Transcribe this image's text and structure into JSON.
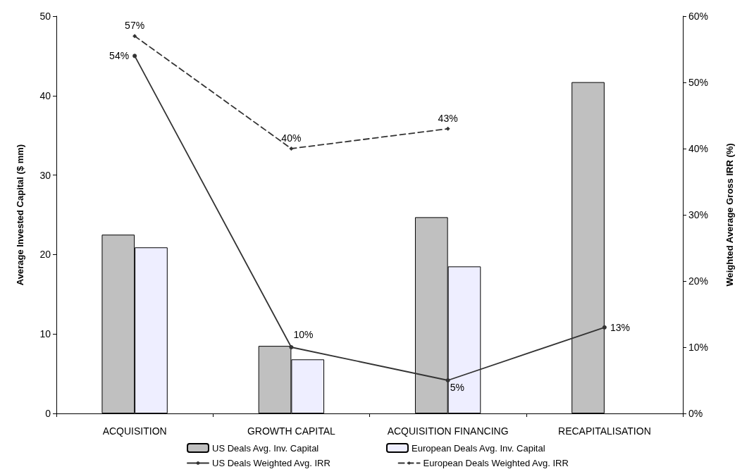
{
  "chart_data": {
    "type": "bar",
    "categories": [
      "ACQUISITION",
      "GROWTH CAPITAL",
      "ACQUISITION FINANCING",
      "RECAPITALISATION"
    ],
    "ylabel": "Average Invested Capital ($ mm)",
    "y2label": "Weighted Average Gross IRR (%)",
    "ylim": [
      0,
      50
    ],
    "yticks": [
      0,
      10,
      20,
      30,
      40,
      50
    ],
    "y2lim": [
      0,
      60
    ],
    "y2ticks": [
      {
        "value": 0,
        "label": "0%"
      },
      {
        "value": 10,
        "label": "10%"
      },
      {
        "value": 20,
        "label": "20%"
      },
      {
        "value": 30,
        "label": "30%"
      },
      {
        "value": 40,
        "label": "40%"
      },
      {
        "value": 50,
        "label": "50%"
      },
      {
        "value": 60,
        "label": "60%"
      }
    ],
    "legend": "bottom",
    "series": [
      {
        "name": "US Deals Avg. Inv. Capital",
        "color": "#c0c0c0",
        "values": [
          22.5,
          8.5,
          24.7,
          41.7
        ]
      },
      {
        "name": "European Deals Avg. Inv. Capital",
        "color": "#eeeeff",
        "values": [
          20.9,
          6.8,
          18.5,
          null
        ]
      },
      {
        "name": "US Deals Weighted Avg. IRR",
        "type": "line",
        "axis": "y2",
        "color": "#333333",
        "marker": "circle",
        "line_style": "solid",
        "values": [
          54,
          10,
          5,
          13
        ],
        "value_labels": [
          "54%",
          "10%",
          "5%",
          "13%"
        ]
      },
      {
        "name": "European Deals Weighted Avg. IRR",
        "type": "line",
        "axis": "y2",
        "color": "#333333",
        "marker": "diamond",
        "line_style": "dashed",
        "values": [
          57,
          40,
          43,
          null
        ],
        "value_labels": [
          "57%",
          "40%",
          "43%",
          null
        ]
      }
    ]
  }
}
